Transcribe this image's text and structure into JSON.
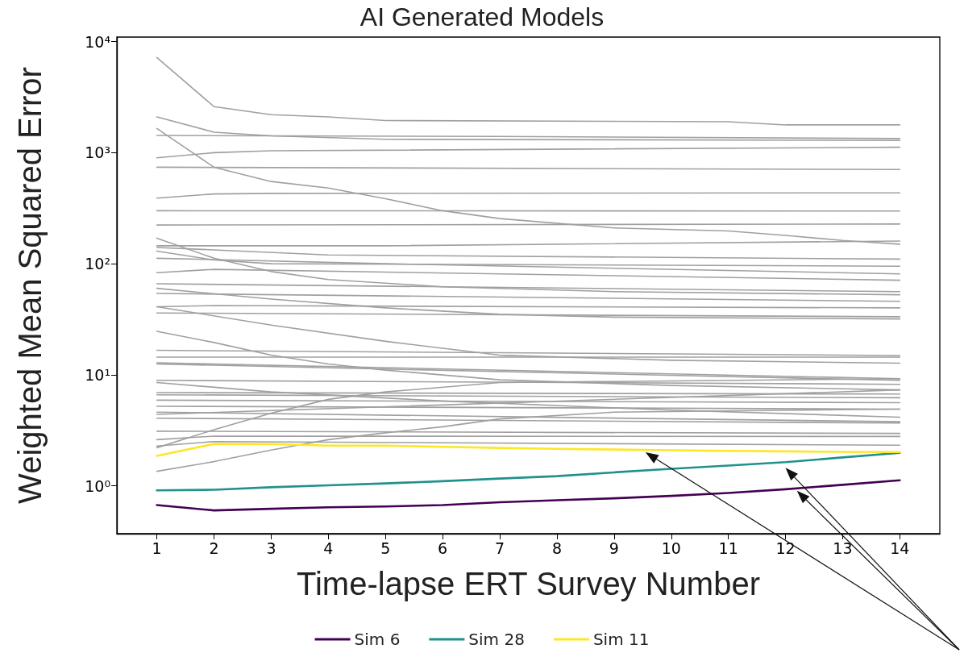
{
  "chart_data": {
    "type": "line",
    "title": "AI Generated Models",
    "xlabel": "Time-lapse ERT Survey Number",
    "ylabel": "Weighted Mean Squared Error",
    "log": "y",
    "grid": false,
    "legend": "bottom",
    "marker": "none",
    "xlim": [
      0.3,
      14.7
    ],
    "xticks": [
      1,
      2,
      3,
      4,
      5,
      6,
      7,
      8,
      9,
      10,
      11,
      12,
      13,
      14
    ],
    "ylim": [
      0.37,
      11000
    ],
    "yticks": [
      {
        "value": 1,
        "label": "10⁰"
      },
      {
        "value": 10,
        "label": "10¹"
      },
      {
        "value": 100,
        "label": "10²"
      },
      {
        "value": 1000,
        "label": "10³"
      },
      {
        "value": 10000,
        "label": "10⁴"
      }
    ],
    "series": [
      {
        "color": "#a0a0a0",
        "x": [
          1,
          2,
          3,
          4,
          5,
          11,
          12,
          14
        ],
        "values": [
          7200,
          2600,
          2200,
          2100,
          1950,
          1900,
          1780,
          1780
        ]
      },
      {
        "color": "#a0a0a0",
        "x": [
          1,
          2,
          3,
          5,
          14
        ],
        "values": [
          2100,
          1530,
          1420,
          1320,
          1290
        ]
      },
      {
        "color": "#a0a0a0",
        "x": [
          1,
          7,
          14
        ],
        "values": [
          1430,
          1400,
          1340
        ]
      },
      {
        "color": "#a0a0a0",
        "x": [
          1,
          2,
          3,
          4,
          5,
          6,
          7,
          9,
          11,
          12,
          13,
          14
        ],
        "values": [
          1650,
          740,
          550,
          480,
          385,
          300,
          255,
          210,
          197,
          180,
          162,
          150
        ]
      },
      {
        "color": "#a0a0a0",
        "x": [
          1,
          2,
          3,
          14
        ],
        "values": [
          900,
          1000,
          1040,
          1120
        ]
      },
      {
        "color": "#a0a0a0",
        "x": [
          1,
          14
        ],
        "values": [
          740,
          705
        ]
      },
      {
        "color": "#a0a0a0",
        "x": [
          1,
          2,
          3,
          14
        ],
        "values": [
          390,
          425,
          430,
          435
        ]
      },
      {
        "color": "#a0a0a0",
        "x": [
          1,
          14
        ],
        "values": [
          300,
          298
        ]
      },
      {
        "color": "#a0a0a0",
        "x": [
          1,
          14
        ],
        "values": [
          223,
          228
        ]
      },
      {
        "color": "#a0a0a0",
        "x": [
          1,
          5,
          14
        ],
        "values": [
          145,
          145,
          160
        ]
      },
      {
        "color": "#a0a0a0",
        "x": [
          1,
          2,
          3,
          4,
          6,
          9,
          14
        ],
        "values": [
          170,
          112,
          85,
          72,
          62,
          56,
          52.5
        ]
      },
      {
        "color": "#a0a0a0",
        "x": [
          1,
          4,
          14
        ],
        "values": [
          140,
          120,
          110
        ]
      },
      {
        "color": "#a0a0a0",
        "x": [
          1,
          2,
          3,
          14
        ],
        "values": [
          130,
          108,
          100,
          95
        ]
      },
      {
        "color": "#a0a0a0",
        "x": [
          1,
          5,
          14
        ],
        "values": [
          112,
          100,
          81
        ]
      },
      {
        "color": "#a0a0a0",
        "x": [
          1,
          2,
          14
        ],
        "values": [
          83,
          89,
          71
        ]
      },
      {
        "color": "#a0a0a0",
        "x": [
          1,
          14
        ],
        "values": [
          66,
          56
        ]
      },
      {
        "color": "#a0a0a0",
        "x": [
          1,
          14
        ],
        "values": [
          54,
          45.8
        ]
      },
      {
        "color": "#a0a0a0",
        "x": [
          1,
          2,
          14
        ],
        "values": [
          41,
          42,
          40
        ]
      },
      {
        "color": "#a0a0a0",
        "x": [
          1,
          14
        ],
        "values": [
          36,
          33.3
        ]
      },
      {
        "color": "#a0a0a0",
        "x": [
          1,
          3,
          5,
          7,
          9,
          14
        ],
        "values": [
          60,
          48,
          40,
          35,
          33,
          31.8
        ]
      },
      {
        "color": "#a0a0a0",
        "x": [
          1,
          3,
          5,
          7,
          10,
          14
        ],
        "values": [
          41,
          28,
          20,
          15,
          13.5,
          12.7
        ]
      },
      {
        "color": "#a0a0a0",
        "x": [
          1,
          2,
          3,
          4,
          5,
          7,
          10,
          14
        ],
        "values": [
          24.6,
          19.5,
          15,
          12.5,
          11,
          9,
          8,
          7.3
        ]
      },
      {
        "color": "#a0a0a0",
        "x": [
          1,
          14
        ],
        "values": [
          16.6,
          14.9
        ]
      },
      {
        "color": "#a0a0a0",
        "x": [
          1,
          14
        ],
        "values": [
          14.4,
          14.4
        ]
      },
      {
        "color": "#a0a0a0",
        "x": [
          1,
          14
        ],
        "values": [
          12.8,
          9.2
        ]
      },
      {
        "color": "#a0a0a0",
        "x": [
          1,
          14
        ],
        "values": [
          12.5,
          8.9
        ]
      },
      {
        "color": "#a0a0a0",
        "x": [
          1,
          14
        ],
        "values": [
          8.9,
          8.2
        ]
      },
      {
        "color": "#a0a0a0",
        "x": [
          1,
          3,
          6,
          10,
          14
        ],
        "values": [
          8.5,
          7,
          5.8,
          4.8,
          4.15
        ]
      },
      {
        "color": "#a0a0a0",
        "x": [
          1,
          14
        ],
        "values": [
          6.9,
          6.7
        ]
      },
      {
        "color": "#a0a0a0",
        "x": [
          1,
          14
        ],
        "values": [
          6.6,
          6.2
        ]
      },
      {
        "color": "#a0a0a0",
        "x": [
          1,
          14
        ],
        "values": [
          5.9,
          5.6
        ]
      },
      {
        "color": "#a0a0a0",
        "x": [
          1,
          14
        ],
        "values": [
          5.2,
          4.9
        ]
      },
      {
        "color": "#a0a0a0",
        "x": [
          1,
          14
        ],
        "values": [
          4.6,
          3.77
        ]
      },
      {
        "color": "#a0a0a0",
        "x": [
          1,
          14
        ],
        "values": [
          4.06,
          3.67
        ]
      },
      {
        "color": "#a0a0a0",
        "x": [
          1,
          2,
          3,
          4,
          5,
          7,
          14
        ],
        "values": [
          2.2,
          3.2,
          4.5,
          6,
          7,
          8.5,
          9.2
        ]
      },
      {
        "color": "#a0a0a0",
        "x": [
          1,
          2,
          3,
          4,
          5,
          6,
          7,
          9,
          14
        ],
        "values": [
          1.35,
          1.65,
          2.1,
          2.6,
          3.0,
          3.4,
          4.0,
          4.6,
          4.9
        ]
      },
      {
        "color": "#a0a0a0",
        "x": [
          1,
          14
        ],
        "values": [
          4.4,
          7.3
        ]
      },
      {
        "color": "#a0a0a0",
        "x": [
          1,
          14
        ],
        "values": [
          3.1,
          2.96
        ]
      },
      {
        "color": "#a0a0a0",
        "x": [
          1,
          2,
          14
        ],
        "values": [
          2.6,
          2.8,
          2.78
        ]
      },
      {
        "color": "#a0a0a0",
        "x": [
          1,
          2,
          14
        ],
        "values": [
          2.28,
          2.5,
          2.32
        ]
      },
      {
        "name": "Sim 6",
        "color": "#440154",
        "x": [
          1,
          2,
          3,
          4,
          5,
          6,
          7,
          8,
          9,
          10,
          11,
          12,
          13,
          14
        ],
        "values": [
          0.67,
          0.6,
          0.62,
          0.64,
          0.65,
          0.67,
          0.71,
          0.74,
          0.77,
          0.81,
          0.86,
          0.93,
          1.02,
          1.12
        ]
      },
      {
        "name": "Sim 28",
        "color": "#21918c",
        "x": [
          1,
          2,
          3,
          4,
          5,
          6,
          7,
          8,
          9,
          10,
          11,
          12,
          13,
          14
        ],
        "values": [
          0.91,
          0.92,
          0.97,
          1.01,
          1.05,
          1.1,
          1.16,
          1.22,
          1.32,
          1.42,
          1.52,
          1.63,
          1.8,
          1.98
        ]
      },
      {
        "name": "Sim 11",
        "color": "#fde725",
        "x": [
          1,
          2,
          3,
          4,
          5,
          6,
          7,
          8,
          9,
          10,
          11,
          12,
          13,
          14
        ],
        "values": [
          1.86,
          2.38,
          2.38,
          2.3,
          2.3,
          2.24,
          2.19,
          2.15,
          2.12,
          2.09,
          2.06,
          2.04,
          2.02,
          2.01
        ]
      }
    ]
  }
}
